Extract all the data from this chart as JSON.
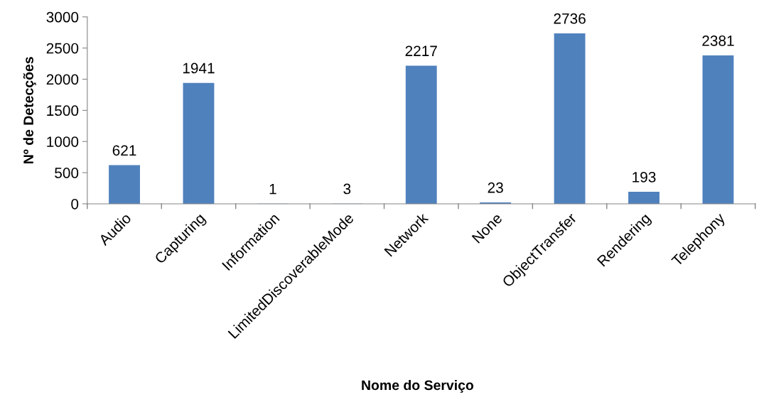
{
  "chart_data": {
    "type": "bar",
    "xlabel": "Nome do Serviço",
    "ylabel": "Nº de Detecções",
    "categories": [
      "Audio",
      "Capturing",
      "Information",
      "LimitedDiscoverableMode",
      "Network",
      "None",
      "ObjectTransfer",
      "Rendering",
      "Telephony"
    ],
    "values": [
      621,
      1941,
      1,
      3,
      2217,
      23,
      2736,
      193,
      2381
    ],
    "color": "#4f81bd",
    "ylim": [
      0,
      3000
    ],
    "yticks": [
      0,
      500,
      1000,
      1500,
      2000,
      2500,
      3000
    ],
    "data_labels": true,
    "grid": false,
    "legend": false
  }
}
